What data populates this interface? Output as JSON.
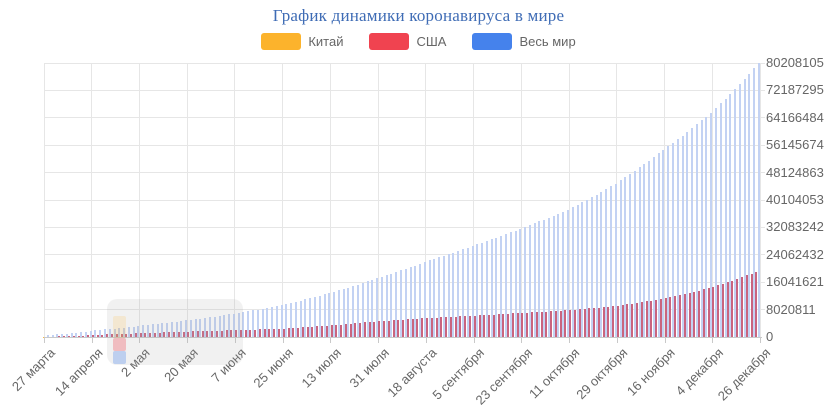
{
  "title": {
    "text": "График динамики коронавируса в мире",
    "color": "#3f6cb5"
  },
  "legend": {
    "items": [
      {
        "key": "china",
        "label": "Китай",
        "color": "#FCB32C"
      },
      {
        "key": "usa",
        "label": "США",
        "color": "#F04350"
      },
      {
        "key": "world",
        "label": "Весь мир",
        "color": "#4582EC"
      }
    ]
  },
  "chart_data": {
    "type": "bar",
    "title": "График динамики коронавируса в мире",
    "xlabel": "",
    "ylabel": "",
    "ylim": [
      0,
      80208105
    ],
    "grid": true,
    "legend_position": "top",
    "yticks": [
      0,
      8020811,
      16041621,
      24062432,
      32083242,
      40104053,
      48124863,
      56145674,
      64166484,
      72187295,
      80208105
    ],
    "categories": [
      "27 марта",
      "14 апреля",
      "2 мая",
      "20 мая",
      "7 июня",
      "25 июня",
      "13 июля",
      "31 июля",
      "18 августа",
      "5 сентября",
      "23 сентября",
      "11 октября",
      "29 октября",
      "16 ноября",
      "4 декабря",
      "26 декабря"
    ],
    "series": [
      {
        "key": "china",
        "name": "Китай",
        "color": "#FCB32C",
        "bar_color": "rgba(252,179,44,0.9)",
        "values": [
          81897,
          82295,
          82875,
          84063,
          84634,
          85172,
          85568,
          87489,
          89479,
          90136,
          90409,
          91305,
          91963,
          92482,
          93898,
          95279
        ]
      },
      {
        "key": "usa",
        "name": "США",
        "color": "#F04350",
        "bar_color": "#c9647f",
        "values": [
          100000,
          610000,
          1130000,
          1570000,
          1990000,
          2450000,
          3400000,
          4600000,
          5530000,
          6250000,
          7000000,
          7800000,
          9000000,
          11200000,
          14300000,
          19100000
        ]
      },
      {
        "key": "world",
        "name": "Весь мир",
        "color": "#4582EC",
        "bar_color": "#c3d2f3",
        "values": [
          590000,
          2000000,
          3400000,
          5000000,
          7000000,
          9600000,
          13100000,
          17500000,
          22200000,
          26900000,
          31900000,
          37400000,
          45100000,
          55000000,
          65800000,
          80208105
        ]
      }
    ]
  },
  "theme": {
    "grid": "#e6e6e6",
    "axis": "#c9c9c9",
    "text": "#666666",
    "background": "#ffffff"
  }
}
